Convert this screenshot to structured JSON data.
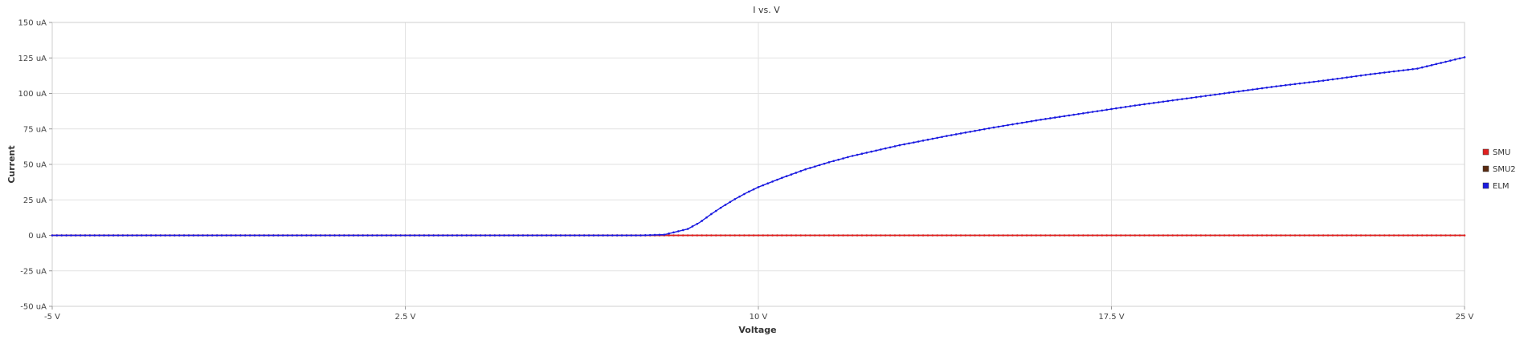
{
  "chart_data": {
    "type": "line",
    "title": "I vs. V",
    "xlabel": "Voltage",
    "ylabel": "Current",
    "xlim": [
      -5,
      25
    ],
    "ylim": [
      -50,
      150
    ],
    "x_ticks": [
      {
        "value": -5,
        "label": "-5 V"
      },
      {
        "value": 2.5,
        "label": "2.5 V"
      },
      {
        "value": 10,
        "label": "10 V"
      },
      {
        "value": 17.5,
        "label": "17.5 V"
      },
      {
        "value": 25,
        "label": "25 V"
      }
    ],
    "y_ticks": [
      {
        "value": 150,
        "label": "150 uA"
      },
      {
        "value": 125,
        "label": "125 uA"
      },
      {
        "value": 100,
        "label": "100 uA"
      },
      {
        "value": 75,
        "label": "75 uA"
      },
      {
        "value": 50,
        "label": "50 uA"
      },
      {
        "value": 25,
        "label": "25 uA"
      },
      {
        "value": 0,
        "label": "0 uA"
      },
      {
        "value": -25,
        "label": "-25 uA"
      },
      {
        "value": -50,
        "label": "-50 uA"
      }
    ],
    "grid": true,
    "legend_position": "right",
    "series": [
      {
        "name": "SMU",
        "color": "#e02020",
        "x": [
          -5,
          -2.5,
          0,
          2.5,
          5,
          7.5,
          10,
          12.5,
          15,
          17.5,
          20,
          22.5,
          25
        ],
        "y": [
          0,
          0,
          0,
          0,
          0,
          0,
          0,
          0,
          0,
          0,
          0,
          0,
          0
        ]
      },
      {
        "name": "SMU2",
        "color": "#5a2a10",
        "x": [
          -5,
          25
        ],
        "y": [
          0,
          0
        ]
      },
      {
        "name": "ELM",
        "color": "#1a1ae0",
        "x": [
          -5,
          0,
          2.5,
          5,
          7.5,
          8.0,
          8.5,
          8.75,
          9.0,
          9.25,
          9.5,
          9.75,
          10.0,
          10.5,
          11.0,
          11.5,
          12.0,
          13.0,
          14.0,
          15.0,
          16.0,
          17.0,
          18.0,
          19.0,
          20.0,
          21.0,
          22.0,
          23.0,
          24.0,
          25.0
        ],
        "y": [
          0,
          0,
          0,
          0,
          0,
          0.5,
          4.5,
          9,
          15,
          20.5,
          25.5,
          30,
          34,
          40.5,
          46.5,
          51.5,
          56,
          63.5,
          70,
          76,
          81.5,
          86.5,
          91.5,
          96,
          100.5,
          105,
          109,
          113.5,
          117.5,
          125.5
        ]
      }
    ]
  }
}
